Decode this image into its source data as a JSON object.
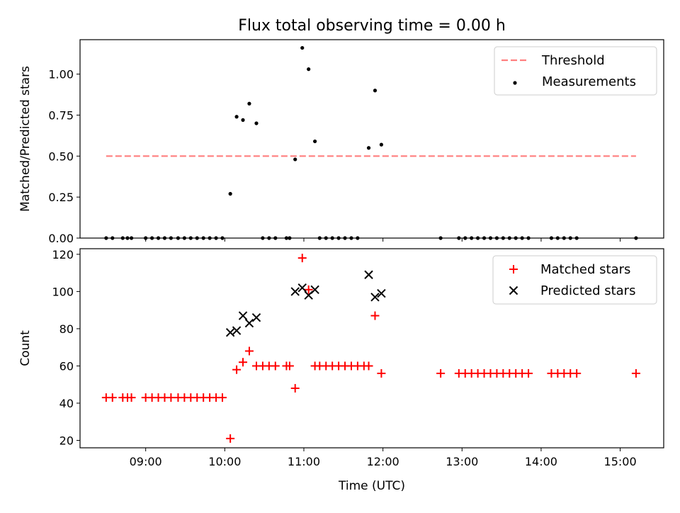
{
  "chart_data": [
    {
      "type": "scatter",
      "title": "Flux total observing time = 0.00 h",
      "ylabel": "Matched/Predicted stars",
      "xlabel": "",
      "ylim": [
        0,
        1.21
      ],
      "x_ticks": [
        "09:00",
        "10:00",
        "11:00",
        "12:00",
        "13:00",
        "14:00",
        "15:00"
      ],
      "y_ticks": [
        "0.00",
        "0.25",
        "0.50",
        "0.75",
        "1.00"
      ],
      "legend_position": "top-right",
      "threshold": {
        "name": "Threshold",
        "y": 0.5,
        "x_start": 8.5,
        "x_end": 15.2,
        "color": "#ff7f7f"
      },
      "series": [
        {
          "name": "Measurements",
          "color": "#000000",
          "points": [
            [
              8.5,
              0
            ],
            [
              8.58,
              0
            ],
            [
              8.71,
              0
            ],
            [
              8.77,
              0
            ],
            [
              8.82,
              0
            ],
            [
              9.0,
              0
            ],
            [
              9.08,
              0
            ],
            [
              9.16,
              0
            ],
            [
              9.24,
              0
            ],
            [
              9.32,
              0
            ],
            [
              9.41,
              0
            ],
            [
              9.49,
              0
            ],
            [
              9.57,
              0
            ],
            [
              9.65,
              0
            ],
            [
              9.73,
              0
            ],
            [
              9.81,
              0
            ],
            [
              9.89,
              0
            ],
            [
              9.97,
              0
            ],
            [
              10.07,
              0.27
            ],
            [
              10.15,
              0.74
            ],
            [
              10.23,
              0.72
            ],
            [
              10.31,
              0.82
            ],
            [
              10.4,
              0.7
            ],
            [
              10.48,
              0
            ],
            [
              10.56,
              0
            ],
            [
              10.64,
              0
            ],
            [
              10.78,
              0
            ],
            [
              10.82,
              0
            ],
            [
              10.89,
              0.48
            ],
            [
              10.98,
              1.16
            ],
            [
              11.06,
              1.03
            ],
            [
              11.14,
              0.59
            ],
            [
              11.2,
              0
            ],
            [
              11.28,
              0
            ],
            [
              11.36,
              0
            ],
            [
              11.44,
              0
            ],
            [
              11.52,
              0
            ],
            [
              11.6,
              0
            ],
            [
              11.68,
              0
            ],
            [
              11.82,
              0.55
            ],
            [
              11.9,
              0.9
            ],
            [
              11.98,
              0.57
            ],
            [
              12.73,
              0
            ],
            [
              12.96,
              0
            ],
            [
              13.04,
              0
            ],
            [
              13.12,
              0
            ],
            [
              13.2,
              0
            ],
            [
              13.28,
              0
            ],
            [
              13.36,
              0
            ],
            [
              13.44,
              0
            ],
            [
              13.52,
              0
            ],
            [
              13.6,
              0
            ],
            [
              13.68,
              0
            ],
            [
              13.76,
              0
            ],
            [
              13.84,
              0
            ],
            [
              14.13,
              0
            ],
            [
              14.21,
              0
            ],
            [
              14.29,
              0
            ],
            [
              14.37,
              0
            ],
            [
              14.45,
              0
            ],
            [
              15.2,
              0
            ]
          ]
        }
      ]
    },
    {
      "type": "scatter",
      "title": "",
      "ylabel": "Count",
      "xlabel": "Time (UTC)",
      "ylim": [
        16,
        123
      ],
      "x_ticks": [
        "09:00",
        "10:00",
        "11:00",
        "12:00",
        "13:00",
        "14:00",
        "15:00"
      ],
      "y_ticks": [
        "20",
        "40",
        "60",
        "80",
        "100",
        "120"
      ],
      "legend_position": "top-right",
      "series": [
        {
          "name": "Matched stars",
          "marker": "plus",
          "color": "#ff0000",
          "points": [
            [
              8.5,
              43
            ],
            [
              8.58,
              43
            ],
            [
              8.71,
              43
            ],
            [
              8.77,
              43
            ],
            [
              8.82,
              43
            ],
            [
              9.0,
              43
            ],
            [
              9.08,
              43
            ],
            [
              9.16,
              43
            ],
            [
              9.24,
              43
            ],
            [
              9.32,
              43
            ],
            [
              9.41,
              43
            ],
            [
              9.49,
              43
            ],
            [
              9.57,
              43
            ],
            [
              9.65,
              43
            ],
            [
              9.73,
              43
            ],
            [
              9.81,
              43
            ],
            [
              9.89,
              43
            ],
            [
              9.97,
              43
            ],
            [
              10.07,
              21
            ],
            [
              10.15,
              58
            ],
            [
              10.23,
              62
            ],
            [
              10.31,
              68
            ],
            [
              10.4,
              60
            ],
            [
              10.48,
              60
            ],
            [
              10.56,
              60
            ],
            [
              10.64,
              60
            ],
            [
              10.78,
              60
            ],
            [
              10.82,
              60
            ],
            [
              10.89,
              48
            ],
            [
              10.98,
              118
            ],
            [
              11.06,
              101
            ],
            [
              11.14,
              60
            ],
            [
              11.2,
              60
            ],
            [
              11.28,
              60
            ],
            [
              11.36,
              60
            ],
            [
              11.44,
              60
            ],
            [
              11.52,
              60
            ],
            [
              11.6,
              60
            ],
            [
              11.68,
              60
            ],
            [
              11.76,
              60
            ],
            [
              11.82,
              60
            ],
            [
              11.9,
              87
            ],
            [
              11.98,
              56
            ],
            [
              12.73,
              56
            ],
            [
              12.96,
              56
            ],
            [
              13.04,
              56
            ],
            [
              13.12,
              56
            ],
            [
              13.2,
              56
            ],
            [
              13.28,
              56
            ],
            [
              13.36,
              56
            ],
            [
              13.44,
              56
            ],
            [
              13.52,
              56
            ],
            [
              13.6,
              56
            ],
            [
              13.68,
              56
            ],
            [
              13.76,
              56
            ],
            [
              13.84,
              56
            ],
            [
              14.13,
              56
            ],
            [
              14.21,
              56
            ],
            [
              14.29,
              56
            ],
            [
              14.37,
              56
            ],
            [
              14.45,
              56
            ],
            [
              15.2,
              56
            ]
          ]
        },
        {
          "name": "Predicted stars",
          "marker": "x",
          "color": "#000000",
          "points": [
            [
              10.07,
              78
            ],
            [
              10.15,
              79
            ],
            [
              10.23,
              87
            ],
            [
              10.31,
              83
            ],
            [
              10.4,
              86
            ],
            [
              10.89,
              100
            ],
            [
              10.98,
              102
            ],
            [
              11.06,
              98
            ],
            [
              11.14,
              101
            ],
            [
              11.82,
              109
            ],
            [
              11.9,
              97
            ],
            [
              11.98,
              99
            ]
          ]
        }
      ]
    }
  ]
}
